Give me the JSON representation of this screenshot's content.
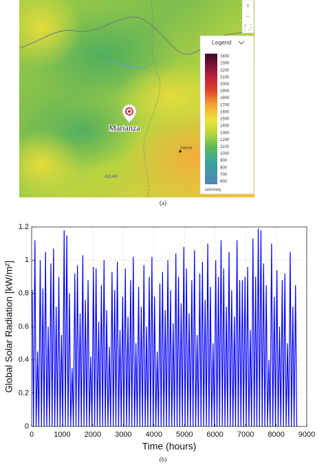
{
  "map": {
    "legend_title": "Legend",
    "legend_labels": [
      "2400",
      "2300",
      "2200",
      "2100",
      "2000",
      "1900",
      "1800",
      "1700",
      "1600",
      "1500",
      "1400",
      "1300",
      "1200",
      "1100",
      "1000",
      "900",
      "800",
      "700",
      "600"
    ],
    "legend_unit": "kWh/kWp",
    "place_main": "Marianza",
    "place_city": "Cuenca",
    "place_region": "AZUAY",
    "zoom_in": "+",
    "zoom_out": "−",
    "caption": "(a)"
  },
  "chart_data": {
    "type": "line",
    "caption": "(b)",
    "xlabel": "Time (hours)",
    "ylabel": "Global Solar Radiation [kW/m²]",
    "color": "#0000ff",
    "grid": true,
    "xlim": [
      0,
      9000
    ],
    "xticks": [
      0,
      1000,
      2000,
      3000,
      4000,
      5000,
      6000,
      7000,
      8000,
      9000
    ],
    "ylim": [
      0,
      1.2
    ],
    "yticks": [
      0,
      0.2,
      0.4,
      0.6,
      0.8,
      1,
      1.2
    ],
    "x": [
      20,
      60,
      107,
      147,
      194,
      234,
      281,
      321,
      368,
      408,
      455,
      495,
      542,
      582,
      629,
      669,
      716,
      756,
      803,
      843,
      890,
      930,
      977,
      1017,
      1064,
      1104,
      1151,
      1191,
      1238,
      1278,
      1325,
      1365,
      1412,
      1452,
      1499,
      1539,
      1586,
      1626,
      1673,
      1713,
      1760,
      1800,
      1847,
      1887,
      1934,
      1974,
      2021,
      2061,
      2108,
      2148,
      2195,
      2235,
      2282,
      2322,
      2369,
      2409,
      2456,
      2496,
      2543,
      2583,
      2630,
      2670,
      2717,
      2757,
      2804,
      2844,
      2891,
      2931,
      2978,
      3018,
      3065,
      3105,
      3152,
      3192,
      3239,
      3279,
      3326,
      3366,
      3413,
      3453,
      3500,
      3540,
      3587,
      3627,
      3674,
      3714,
      3761,
      3801,
      3848,
      3888,
      3935,
      3975,
      4022,
      4062,
      4109,
      4149,
      4196,
      4236,
      4283,
      4323,
      4370,
      4410,
      4457,
      4497,
      4544,
      4584,
      4631,
      4671,
      4718,
      4758,
      4805,
      4845,
      4892,
      4932,
      4979,
      5019,
      5066,
      5106,
      5153,
      5193,
      5240,
      5280,
      5327,
      5367,
      5414,
      5454,
      5501,
      5541,
      5588,
      5628,
      5675,
      5715,
      5762,
      5802,
      5849,
      5889,
      5936,
      5976,
      6023,
      6063,
      6110,
      6150,
      6197,
      6237,
      6284,
      6324,
      6371,
      6411,
      6458,
      6498,
      6545,
      6585,
      6632,
      6672,
      6719,
      6759,
      6806,
      6846,
      6893,
      6933,
      6980,
      7020,
      7067,
      7107,
      7154,
      7194,
      7241,
      7281,
      7328,
      7368,
      7415,
      7455,
      7502,
      7542,
      7589,
      7629,
      7676,
      7716,
      7763,
      7803,
      7850,
      7890,
      7937,
      7977,
      8024,
      8064,
      8111,
      8151,
      8198,
      8238,
      8285,
      8325,
      8372,
      8412,
      8459,
      8499,
      8546,
      8586,
      8633,
      8673
    ],
    "values": [
      0.82,
      0,
      1.12,
      0,
      0.45,
      0,
      1.0,
      0,
      0.83,
      0,
      1.05,
      0,
      0.6,
      0,
      0.98,
      0,
      1.07,
      0,
      0.72,
      0,
      0.9,
      0,
      0.55,
      0,
      1.18,
      0,
      1.15,
      0,
      0.8,
      0,
      0.35,
      0,
      0.92,
      0,
      0.97,
      0,
      0.68,
      0,
      1.03,
      0,
      0.76,
      0,
      0.88,
      0,
      0.42,
      0,
      0.96,
      0,
      0.95,
      0,
      0.63,
      0,
      0.85,
      0,
      1.0,
      0,
      0.7,
      0,
      0.48,
      0,
      0.93,
      0,
      0.82,
      0,
      0.99,
      0,
      0.58,
      0,
      0.78,
      0,
      0.95,
      0,
      0.66,
      0,
      0.88,
      0,
      1.02,
      0,
      0.5,
      0,
      0.84,
      0,
      0.72,
      0,
      0.97,
      0,
      0.6,
      0,
      0.9,
      0,
      1.02,
      0,
      0.78,
      0,
      0.45,
      0,
      0.86,
      0,
      0.93,
      0,
      0.7,
      0,
      1.0,
      0,
      0.82,
      0,
      0.62,
      0,
      1.04,
      0,
      0.9,
      0,
      0.74,
      0,
      1.08,
      0,
      0.95,
      0,
      0.68,
      0,
      0.88,
      0,
      1.06,
      0,
      0.55,
      0,
      0.92,
      0,
      0.99,
      0,
      0.76,
      0,
      1.1,
      0,
      0.84,
      0,
      0.5,
      0,
      1.0,
      0,
      0.9,
      0,
      1.12,
      0,
      0.95,
      0,
      0.72,
      0,
      1.05,
      0,
      0.82,
      0,
      0.66,
      0,
      1.12,
      0,
      0.88,
      0,
      0.88,
      0,
      0.9,
      0,
      0.96,
      0,
      0.58,
      0,
      1.13,
      0,
      0.9,
      0,
      1.19,
      0,
      1.18,
      0,
      0.98,
      0,
      0.85,
      0,
      0.4,
      0,
      1.1,
      0,
      0.78,
      0,
      0.94,
      0,
      0.6,
      0,
      0.88,
      0,
      0.92,
      0,
      0.5,
      0,
      1.05,
      0,
      0.72,
      0,
      0.85,
      0
    ]
  }
}
